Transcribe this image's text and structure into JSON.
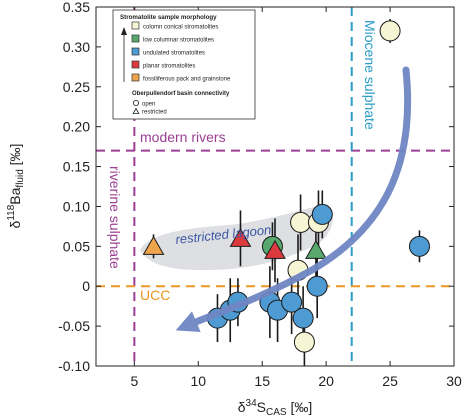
{
  "chart_data": {
    "type": "scatter",
    "xlabel_main": "δ",
    "xlabel_sup": "34",
    "xlabel_mid": "S",
    "xlabel_sub": "CAS",
    "xlabel_unit": " [‰]",
    "ylabel_main": "δ",
    "ylabel_sup": "118",
    "ylabel_mid": "Ba",
    "ylabel_sub": "fluid",
    "ylabel_unit": " [‰]",
    "xlim": [
      2,
      30
    ],
    "ylim": [
      -0.1,
      0.35
    ],
    "xticks": [
      5,
      10,
      15,
      20,
      25,
      30
    ],
    "yticks": [
      -0.1,
      -0.05,
      0,
      0.05,
      0.1,
      0.15,
      0.2,
      0.25,
      0.3,
      0.35
    ],
    "ytick_labels": [
      "-0.10",
      "-0.05",
      "0",
      "0.05",
      "0.10",
      "0.15",
      "0.20",
      "0.25",
      "0.30",
      "0.35"
    ],
    "reference_lines": [
      {
        "orientation": "horizontal",
        "value": 0.17,
        "color": "#9b3f93",
        "label": "modern rivers"
      },
      {
        "orientation": "vertical",
        "value": 5,
        "color": "#9b3f93",
        "label": "riverine sulphate"
      },
      {
        "orientation": "vertical",
        "value": 22,
        "color": "#2a9cc6",
        "label": "Miocene sulphate"
      },
      {
        "orientation": "horizontal",
        "value": 0,
        "color": "#ec9624",
        "label": "UCC"
      }
    ],
    "annotations": [
      "restricted lagoon"
    ],
    "categories": [
      {
        "key": "columnar",
        "label": "colomn conical stromatolites",
        "color": "#f7f6d4"
      },
      {
        "key": "low",
        "label": "low columnar stromatolites",
        "color": "#58a86e"
      },
      {
        "key": "undulated",
        "label": "undulated stromatolites",
        "color": "#4e9ad2"
      },
      {
        "key": "planar",
        "label": "planar stromatolites",
        "color": "#dd3a3f"
      },
      {
        "key": "fossiliferous",
        "label": "fossiliferous pack and grainstone",
        "color": "#eea44b"
      }
    ],
    "connectivity": [
      {
        "key": "open",
        "label": "open",
        "shape": "circle"
      },
      {
        "key": "restricted",
        "label": "restricted",
        "shape": "triangle"
      }
    ],
    "legend": {
      "title": "Stromatolite sample morphology",
      "connectivity_title": "Oberpullendorf basin connectivity",
      "placement": "top-left"
    },
    "points": [
      {
        "x": 6.5,
        "y": 0.05,
        "yerr": 0.015,
        "cat": "fossiliferous",
        "shape": "triangle"
      },
      {
        "x": 11.5,
        "y": -0.04,
        "yerr": 0.03,
        "cat": "undulated",
        "shape": "circle"
      },
      {
        "x": 12.5,
        "y": -0.03,
        "yerr": 0.04,
        "cat": "undulated",
        "shape": "circle"
      },
      {
        "x": 13.1,
        "y": -0.02,
        "yerr": 0.03,
        "cat": "undulated",
        "shape": "circle"
      },
      {
        "x": 13.3,
        "y": 0.06,
        "yerr": 0.035,
        "cat": "planar",
        "shape": "triangle"
      },
      {
        "x": 15.6,
        "y": -0.02,
        "yerr": 0.045,
        "cat": "undulated",
        "shape": "circle"
      },
      {
        "x": 15.8,
        "y": 0.05,
        "yerr": 0.03,
        "cat": "low",
        "shape": "circle"
      },
      {
        "x": 16.0,
        "y": 0.045,
        "yerr": 0.04,
        "cat": "planar",
        "shape": "triangle"
      },
      {
        "x": 16.2,
        "y": -0.03,
        "yerr": 0.04,
        "cat": "undulated",
        "shape": "circle"
      },
      {
        "x": 17.3,
        "y": -0.02,
        "yerr": 0.04,
        "cat": "undulated",
        "shape": "circle"
      },
      {
        "x": 17.8,
        "y": 0.02,
        "yerr": 0.045,
        "cat": "columnar",
        "shape": "circle"
      },
      {
        "x": 18.0,
        "y": 0.08,
        "yerr": 0.035,
        "cat": "columnar",
        "shape": "circle"
      },
      {
        "x": 18.2,
        "y": -0.04,
        "yerr": 0.04,
        "cat": "undulated",
        "shape": "circle"
      },
      {
        "x": 18.3,
        "y": -0.07,
        "yerr": 0.03,
        "cat": "columnar",
        "shape": "circle"
      },
      {
        "x": 19.2,
        "y": 0.045,
        "yerr": 0.04,
        "cat": "low",
        "shape": "triangle"
      },
      {
        "x": 19.3,
        "y": 0.0,
        "yerr": 0.04,
        "cat": "undulated",
        "shape": "circle"
      },
      {
        "x": 19.4,
        "y": 0.08,
        "yerr": 0.04,
        "cat": "columnar",
        "shape": "circle"
      },
      {
        "x": 19.7,
        "y": 0.09,
        "yerr": 0.03,
        "cat": "undulated",
        "shape": "circle"
      },
      {
        "x": 25.0,
        "y": 0.32,
        "yerr": 0.015,
        "cat": "columnar",
        "shape": "circle"
      },
      {
        "x": 27.3,
        "y": 0.05,
        "yerr": 0.02,
        "cat": "undulated",
        "shape": "circle"
      }
    ]
  }
}
